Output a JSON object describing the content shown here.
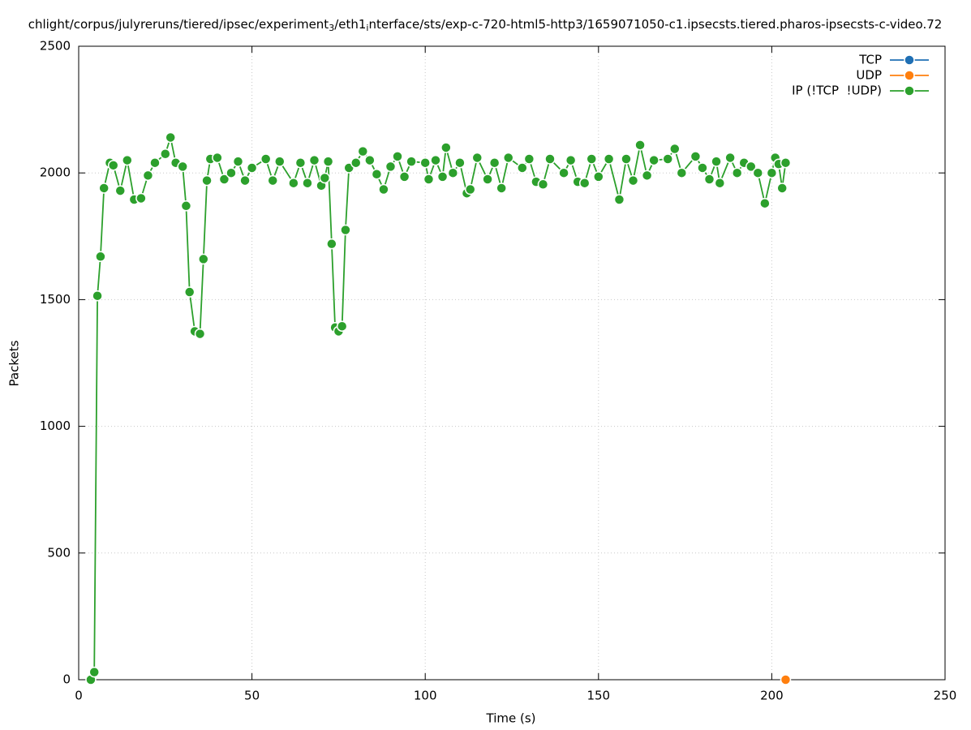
{
  "chart_data": {
    "type": "line",
    "title": [
      "chlight/corpus/julyreruns/tiered/ipsec/experiment",
      "3",
      "/eth1",
      "i",
      "nterface/sts/exp-c-720-html5-http3/1659071050-c1.ipsecsts.tiered.pharos-ipsecsts-c-video.72"
    ],
    "xlabel": "Time (s)",
    "ylabel": "Packets",
    "xlim": [
      0,
      250
    ],
    "xticks": [
      0,
      50,
      100,
      150,
      200,
      250
    ],
    "ylim": [
      0,
      2500
    ],
    "yticks": [
      0,
      500,
      1000,
      1500,
      2000,
      2500
    ],
    "grid": true,
    "legend": "top-right",
    "x": [
      3.5,
      4.5,
      5.4,
      6.3,
      7.3,
      9,
      10,
      12,
      14,
      16,
      18,
      20,
      22,
      25,
      26.5,
      28,
      30,
      31,
      32,
      33.5,
      35,
      36,
      37,
      38,
      40,
      42,
      44,
      46,
      48,
      50,
      54,
      56,
      58,
      62,
      64,
      66,
      68,
      70,
      71,
      72,
      73,
      74,
      75,
      76,
      77,
      78,
      80,
      82,
      84,
      86,
      88,
      90,
      92,
      94,
      96,
      100,
      101,
      103,
      105,
      106,
      108,
      110,
      112,
      113,
      115,
      118,
      120,
      122,
      124,
      128,
      130,
      132,
      134,
      136,
      140,
      142,
      144,
      146,
      148,
      150,
      153,
      156,
      158,
      160,
      162,
      164,
      166,
      170,
      172,
      174,
      178,
      180,
      182,
      184,
      185,
      188,
      190,
      192,
      194,
      196,
      198,
      200,
      201,
      202,
      203,
      204
    ],
    "series": [
      {
        "name": "TCP",
        "color": "#1f6fb4",
        "values": [
          null,
          null,
          null,
          null,
          null,
          null,
          null,
          null,
          null,
          null,
          null,
          null,
          null,
          null,
          null,
          null,
          null,
          null,
          null,
          null,
          null,
          null,
          null,
          null,
          null,
          null,
          null,
          null,
          null,
          null,
          null,
          null,
          null,
          null,
          null,
          null,
          null,
          null,
          null,
          null,
          null,
          null,
          null,
          null,
          null,
          null,
          null,
          null,
          null,
          null,
          null,
          null,
          null,
          null,
          null,
          null,
          null,
          null,
          null,
          null,
          null,
          null,
          null,
          null,
          null,
          null,
          null,
          null,
          null,
          null,
          null,
          null,
          null,
          null,
          null,
          null,
          null,
          null,
          null,
          null,
          null,
          null,
          null,
          null,
          null,
          null,
          null,
          null,
          null,
          null,
          null,
          null,
          null,
          null,
          null,
          null,
          null,
          null,
          null,
          null,
          null,
          null,
          null,
          null,
          null,
          null
        ]
      },
      {
        "name": "UDP",
        "color": "#ff7f0e",
        "values": [
          null,
          null,
          null,
          null,
          null,
          null,
          null,
          null,
          null,
          null,
          null,
          null,
          null,
          null,
          null,
          null,
          null,
          null,
          null,
          null,
          null,
          null,
          null,
          null,
          null,
          null,
          null,
          null,
          null,
          null,
          null,
          null,
          null,
          null,
          null,
          null,
          null,
          null,
          null,
          null,
          null,
          null,
          null,
          null,
          null,
          null,
          null,
          null,
          null,
          null,
          null,
          null,
          null,
          null,
          null,
          null,
          null,
          null,
          null,
          null,
          null,
          null,
          null,
          null,
          null,
          null,
          null,
          null,
          null,
          null,
          null,
          null,
          null,
          null,
          null,
          null,
          null,
          null,
          null,
          null,
          null,
          null,
          null,
          null,
          null,
          null,
          null,
          null,
          null,
          null,
          null,
          null,
          null,
          null,
          null,
          null,
          null,
          null,
          null,
          null,
          null,
          null,
          null,
          null,
          null,
          0
        ]
      },
      {
        "name": "IP (!TCP  !UDP)",
        "color": "#2ca02c",
        "values": [
          0,
          30,
          1515,
          1670,
          1940,
          2040,
          2030,
          1930,
          2050,
          1895,
          1900,
          1990,
          2040,
          2075,
          2140,
          2040,
          2025,
          1870,
          1530,
          1375,
          1365,
          1660,
          1970,
          2055,
          2060,
          1975,
          2000,
          2045,
          1970,
          2020,
          2055,
          1970,
          2045,
          1960,
          2040,
          1960,
          2050,
          1950,
          1980,
          2045,
          1720,
          1390,
          1375,
          1395,
          1775,
          2020,
          2040,
          2085,
          2050,
          1995,
          1935,
          2025,
          2065,
          1985,
          2045,
          2040,
          1975,
          2050,
          1985,
          2100,
          2000,
          2040,
          1920,
          1935,
          2060,
          1975,
          2040,
          1940,
          2060,
          2020,
          2055,
          1965,
          1955,
          2055,
          2000,
          2050,
          1965,
          1960,
          2055,
          1985,
          2055,
          1895,
          2055,
          1970,
          2110,
          1990,
          2050,
          2055,
          2095,
          2000,
          2065,
          2020,
          1975,
          2045,
          1960,
          2060,
          2000,
          2040,
          2025,
          2000,
          1880,
          2000,
          2060,
          2035,
          1940,
          2040
        ]
      }
    ]
  }
}
